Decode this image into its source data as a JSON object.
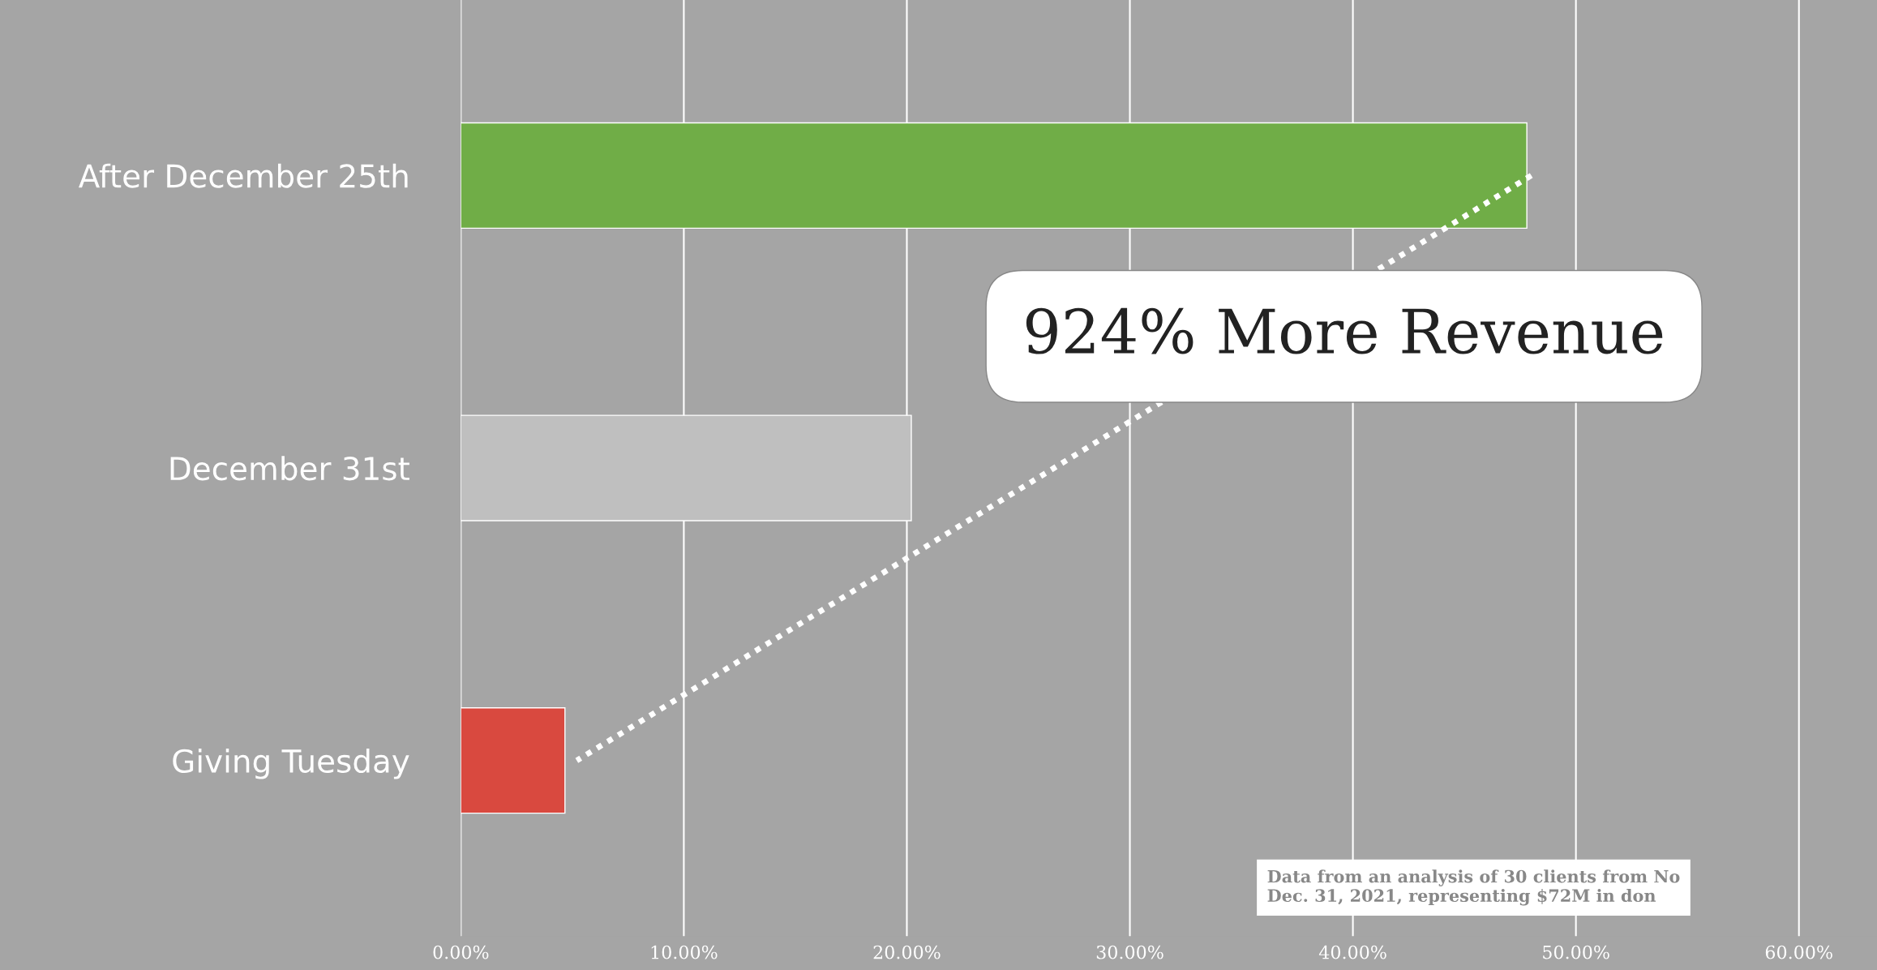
{
  "chart_data": {
    "type": "bar",
    "orientation": "horizontal",
    "categories": [
      "After December 25th",
      "December 31st",
      "Giving Tuesday"
    ],
    "series": [
      {
        "values": [
          47.8,
          20.2,
          4.67
        ],
        "colors": [
          "#70ad47",
          "#bfbfbf",
          "#d9493f"
        ]
      },
      {
        "type": "line",
        "values": [
          48.0,
          null,
          5.2
        ],
        "color": "#ffffff",
        "line_style": "dotted"
      }
    ],
    "xlim": [
      0,
      63.5
    ],
    "xticks": [
      {
        "value": 0,
        "label": "0.00%"
      },
      {
        "value": 10,
        "label": "10.00%"
      },
      {
        "value": 20,
        "label": "20.00%"
      },
      {
        "value": 30,
        "label": "30.00%"
      },
      {
        "value": 40,
        "label": "40.00%"
      },
      {
        "value": 50,
        "label": "50.00%"
      },
      {
        "value": 60,
        "label": "60.00%"
      }
    ],
    "grid": "x",
    "annotations": [
      "924% More Revenue",
      "Data from an analysis of 30 clients from No\nDec. 31, 2021, representing $72M in don"
    ]
  }
}
